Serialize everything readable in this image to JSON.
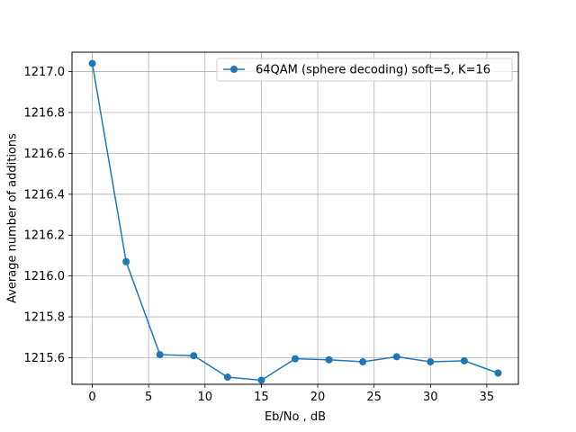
{
  "chart_data": {
    "type": "line",
    "xlabel": "Eb/No , dB",
    "ylabel": "Average number of additions",
    "xlim": [
      -1.8,
      37.8
    ],
    "ylim": [
      1215.47,
      1217.095
    ],
    "xticks": [
      0,
      5,
      10,
      15,
      20,
      25,
      30,
      35
    ],
    "yticks": [
      1215.6,
      1215.8,
      1216.0,
      1216.2,
      1216.4,
      1216.6,
      1216.8,
      1217.0
    ],
    "ytick_labels": [
      "1215.6",
      "1215.8",
      "1216.0",
      "1216.2",
      "1216.4",
      "1216.6",
      "1216.8",
      "1217.0"
    ],
    "grid": true,
    "legend_position": "top-right",
    "x": [
      0,
      3,
      6,
      9,
      12,
      15,
      18,
      21,
      24,
      27,
      30,
      33,
      36
    ],
    "series": [
      {
        "name": "64QAM (sphere decoding) soft=5, K=16",
        "color": "#1f77b4",
        "marker": "circle",
        "values": [
          1217.04,
          1216.07,
          1215.615,
          1215.61,
          1215.505,
          1215.49,
          1215.595,
          1215.59,
          1215.58,
          1215.605,
          1215.58,
          1215.585,
          1215.525
        ]
      }
    ]
  }
}
